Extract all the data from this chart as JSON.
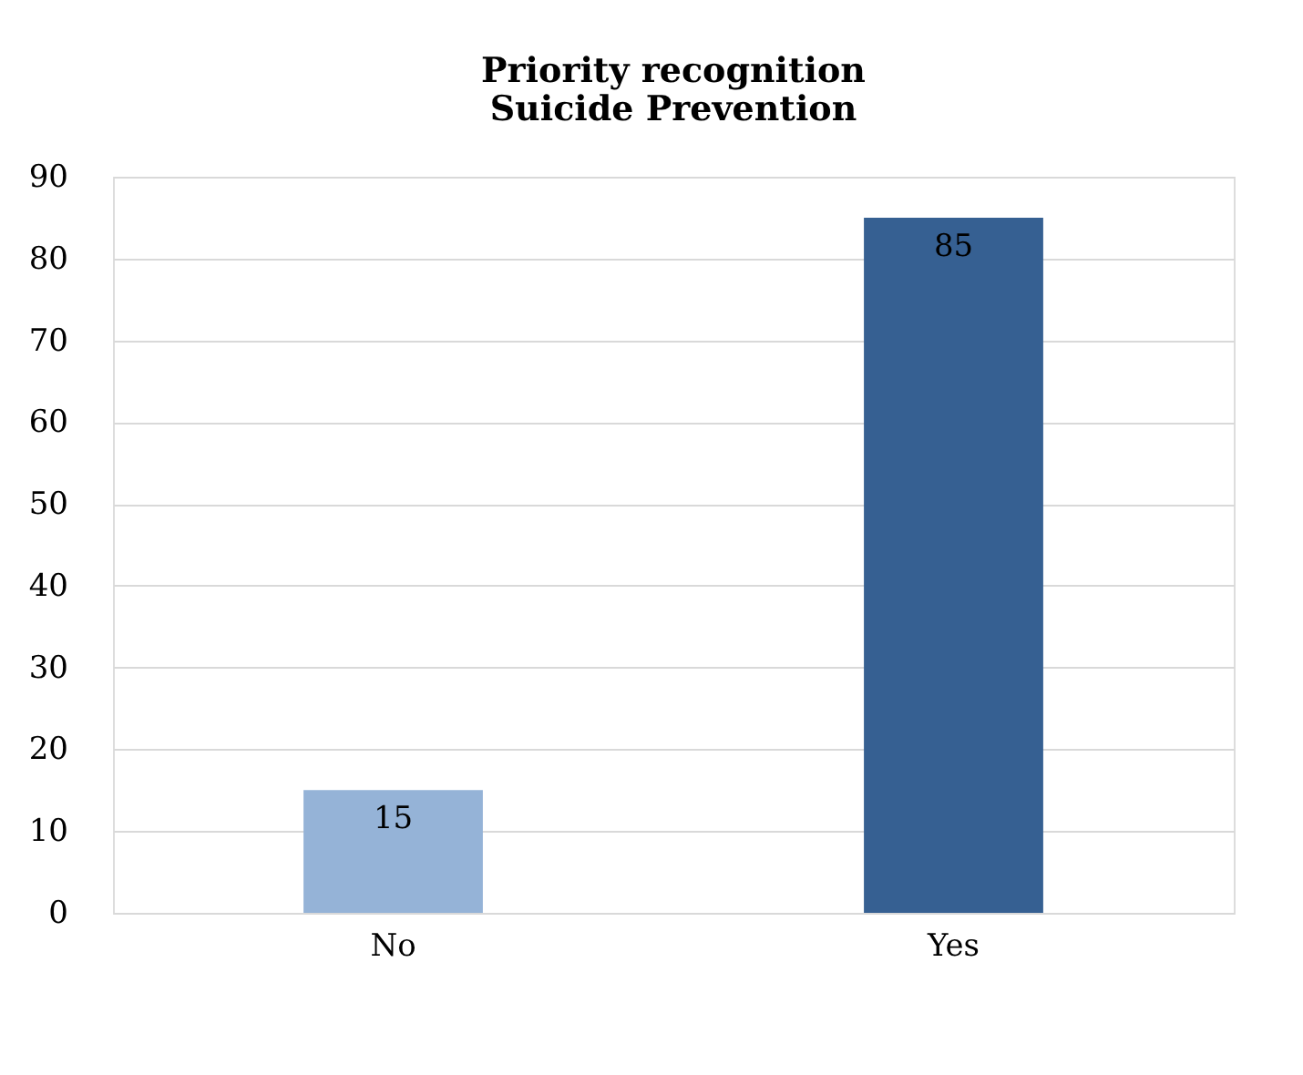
{
  "chart_data": {
    "type": "bar",
    "title": "Priority recognition\nSuicide Prevention",
    "categories": [
      "No",
      "Yes"
    ],
    "values": [
      15,
      85
    ],
    "colors": [
      "#95b3d7",
      "#366092"
    ],
    "ylim": [
      0,
      90
    ],
    "yticks": [
      0,
      10,
      20,
      30,
      40,
      50,
      60,
      70,
      80,
      90
    ],
    "grid": "y",
    "data_labels": true,
    "legend": false
  }
}
